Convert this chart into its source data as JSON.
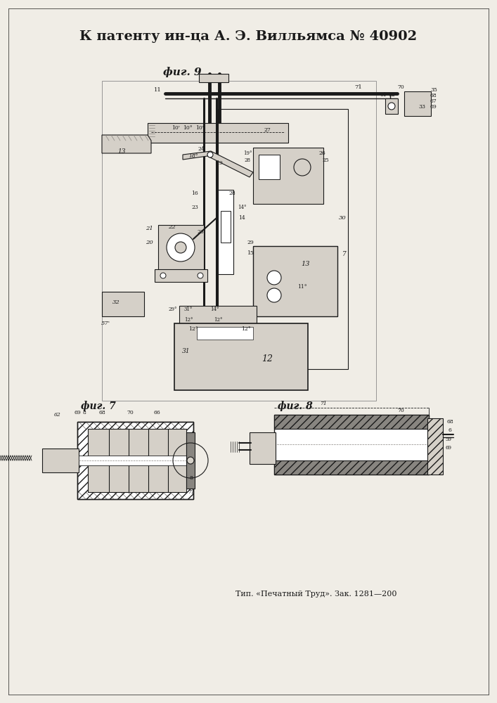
{
  "title": "К патенту ин-ца А. Э. Вилльямса № 40902",
  "footer": "Тип. «Печатный Труд». Зак. 1281—200",
  "background_color": "#f0ede6",
  "text_color": "#1a1a1a",
  "title_fontsize": 14,
  "footer_fontsize": 8,
  "fig_label_9": "фиг. 9",
  "fig_label_7": "фиг. 7",
  "fig_label_8": "фиг. 8"
}
